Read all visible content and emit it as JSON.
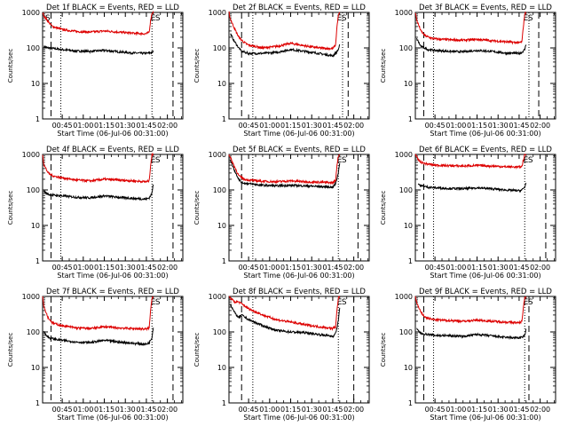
{
  "figure": {
    "colors": {
      "events": "#000000",
      "lld": "#dd0000",
      "axes": "#000000"
    }
  },
  "chart_data": [
    {
      "type": "line",
      "title": "Det 1f BLACK = Events, RED = LLD",
      "xlabel": "Start Time (06-Jul-06 00:31:00)",
      "ylabel": "Counts/sec",
      "yscale": "log",
      "ylim": [
        1,
        1000
      ],
      "xlim": [
        "00:31",
        "02:11"
      ],
      "x_ticks": [
        "00:45",
        "01:00",
        "01:15",
        "01:30",
        "01:45",
        "02:00"
      ],
      "y_ticks": [
        "1",
        "10",
        "100",
        "1000"
      ],
      "markers": {
        "dashed": [
          "00:37",
          "02:04"
        ],
        "dotted": [
          "00:44",
          "01:49"
        ]
      },
      "flags": [
        "S",
        "E",
        "S"
      ],
      "grid": false,
      "series": [
        {
          "name": "Events",
          "x": [
            "00:32",
            "00:35",
            "00:40",
            "00:45",
            "00:55",
            "01:05",
            "01:15",
            "01:25",
            "01:35",
            "01:45",
            "01:47",
            "01:49",
            "01:50"
          ],
          "y": [
            110,
            100,
            95,
            90,
            82,
            80,
            85,
            78,
            72,
            70,
            72,
            74,
            80
          ]
        },
        {
          "name": "LLD",
          "x": [
            "00:31",
            "00:32",
            "00:35",
            "00:38",
            "00:42",
            "00:45",
            "00:55",
            "01:05",
            "01:15",
            "01:25",
            "01:35",
            "01:45",
            "01:47",
            "01:48",
            "01:49",
            "01:50"
          ],
          "y": [
            1000,
            800,
            550,
            400,
            360,
            330,
            290,
            280,
            300,
            280,
            260,
            250,
            280,
            600,
            950,
            1000
          ]
        }
      ]
    },
    {
      "type": "line",
      "title": "Det 2f BLACK = Events, RED = LLD",
      "xlabel": "Start Time (06-Jul-06 00:31:00)",
      "ylabel": "Counts/sec",
      "yscale": "log",
      "ylim": [
        1,
        1000
      ],
      "xlim": [
        "00:31",
        "02:11"
      ],
      "x_ticks": [
        "00:45",
        "01:00",
        "01:15",
        "01:30",
        "01:45",
        "02:00"
      ],
      "y_ticks": [
        "1",
        "10",
        "100",
        "1000"
      ],
      "markers": {
        "dashed": [
          "00:40",
          "01:56"
        ],
        "dotted": [
          "00:48",
          "01:52"
        ]
      },
      "flags": [
        "E",
        "S"
      ],
      "grid": false,
      "series": [
        {
          "name": "Events",
          "x": [
            "00:32",
            "00:35",
            "00:38",
            "00:40",
            "00:45",
            "00:55",
            "01:05",
            "01:15",
            "01:25",
            "01:35",
            "01:45",
            "01:47",
            "01:49",
            "01:50"
          ],
          "y": [
            250,
            150,
            100,
            80,
            70,
            70,
            75,
            90,
            80,
            70,
            60,
            70,
            90,
            120
          ]
        },
        {
          "name": "LLD",
          "x": [
            "00:31",
            "00:32",
            "00:35",
            "00:38",
            "00:42",
            "00:45",
            "00:55",
            "01:05",
            "01:15",
            "01:25",
            "01:35",
            "01:45",
            "01:47",
            "01:48",
            "01:49",
            "01:50"
          ],
          "y": [
            1000,
            650,
            350,
            200,
            140,
            120,
            100,
            110,
            135,
            115,
            100,
            95,
            120,
            400,
            800,
            1000
          ]
        }
      ]
    },
    {
      "type": "line",
      "title": "Det 3f BLACK = Events, RED = LLD",
      "xlabel": "Start Time (06-Jul-06 00:31:00)",
      "ylabel": "Counts/sec",
      "yscale": "log",
      "ylim": [
        1,
        1000
      ],
      "xlim": [
        "00:31",
        "02:11"
      ],
      "x_ticks": [
        "00:45",
        "01:00",
        "01:15",
        "01:30",
        "01:45",
        "02:00"
      ],
      "y_ticks": [
        "1",
        "10",
        "100",
        "1000"
      ],
      "markers": {
        "dashed": [
          "00:37",
          "01:59"
        ],
        "dotted": [
          "00:44",
          "01:52"
        ]
      },
      "flags": [
        "E",
        "S"
      ],
      "grid": false,
      "series": [
        {
          "name": "Events",
          "x": [
            "00:32",
            "00:35",
            "00:40",
            "00:45",
            "00:55",
            "01:05",
            "01:15",
            "01:25",
            "01:35",
            "01:45",
            "01:47",
            "01:49",
            "01:50"
          ],
          "y": [
            180,
            110,
            90,
            85,
            80,
            78,
            85,
            80,
            72,
            70,
            75,
            90,
            130
          ]
        },
        {
          "name": "LLD",
          "x": [
            "00:31",
            "00:32",
            "00:35",
            "00:38",
            "00:42",
            "00:45",
            "00:55",
            "01:05",
            "01:15",
            "01:25",
            "01:35",
            "01:45",
            "01:47",
            "01:48",
            "01:49",
            "01:50"
          ],
          "y": [
            1000,
            600,
            300,
            220,
            190,
            180,
            170,
            165,
            175,
            160,
            150,
            140,
            150,
            400,
            900,
            1000
          ]
        }
      ]
    },
    {
      "type": "line",
      "title": "Det 4f BLACK = Events, RED = LLD",
      "xlabel": "Start Time (06-Jul-06 00:31:00)",
      "ylabel": "Counts/sec",
      "yscale": "log",
      "ylim": [
        1,
        1000
      ],
      "xlim": [
        "00:31",
        "02:11"
      ],
      "x_ticks": [
        "00:45",
        "01:00",
        "01:15",
        "01:30",
        "01:45",
        "02:00"
      ],
      "y_ticks": [
        "1",
        "10",
        "100",
        "1000"
      ],
      "markers": {
        "dashed": [
          "00:37",
          "02:04"
        ],
        "dotted": [
          "00:44",
          "01:49"
        ]
      },
      "flags": [
        "E",
        "S"
      ],
      "grid": false,
      "series": [
        {
          "name": "Events",
          "x": [
            "00:32",
            "00:35",
            "00:40",
            "00:45",
            "00:55",
            "01:05",
            "01:15",
            "01:25",
            "01:35",
            "01:45",
            "01:47",
            "01:49",
            "01:50"
          ],
          "y": [
            90,
            75,
            70,
            68,
            62,
            60,
            68,
            62,
            58,
            55,
            60,
            80,
            150
          ]
        },
        {
          "name": "LLD",
          "x": [
            "00:31",
            "00:32",
            "00:35",
            "00:38",
            "00:42",
            "00:45",
            "00:55",
            "01:05",
            "01:15",
            "01:25",
            "01:35",
            "01:45",
            "01:47",
            "01:48",
            "01:49",
            "01:50"
          ],
          "y": [
            1000,
            500,
            300,
            250,
            230,
            220,
            190,
            180,
            200,
            190,
            180,
            170,
            180,
            500,
            950,
            1000
          ]
        }
      ]
    },
    {
      "type": "line",
      "title": "Det 5f BLACK = Events, RED = LLD",
      "xlabel": "Start Time (06-Jul-06 00:31:00)",
      "ylabel": "Counts/sec",
      "yscale": "log",
      "ylim": [
        1,
        1000
      ],
      "xlim": [
        "00:31",
        "02:11"
      ],
      "x_ticks": [
        "00:45",
        "01:00",
        "01:15",
        "01:30",
        "01:45",
        "02:00"
      ],
      "y_ticks": [
        "1",
        "10",
        "100",
        "1000"
      ],
      "markers": {
        "dashed": [
          "00:40",
          "02:03"
        ],
        "dotted": [
          "00:48",
          "01:49"
        ]
      },
      "flags": [
        "E",
        "S"
      ],
      "grid": false,
      "series": [
        {
          "name": "Events",
          "x": [
            "00:32",
            "00:35",
            "00:38",
            "00:40",
            "00:45",
            "00:55",
            "01:05",
            "01:15",
            "01:25",
            "01:35",
            "01:45",
            "01:47",
            "01:49",
            "01:50"
          ],
          "y": [
            700,
            350,
            200,
            160,
            150,
            135,
            130,
            135,
            130,
            125,
            120,
            150,
            300,
            600
          ]
        },
        {
          "name": "LLD",
          "x": [
            "00:31",
            "00:32",
            "00:35",
            "00:38",
            "00:42",
            "00:45",
            "00:55",
            "01:05",
            "01:15",
            "01:25",
            "01:35",
            "01:45",
            "01:47",
            "01:48",
            "01:49",
            "01:50"
          ],
          "y": [
            1000,
            800,
            450,
            250,
            200,
            190,
            175,
            170,
            180,
            170,
            165,
            160,
            180,
            500,
            900,
            1000
          ]
        }
      ]
    },
    {
      "type": "line",
      "title": "Det 6f BLACK = Events, RED = LLD",
      "xlabel": "Start Time (06-Jul-06 00:31:00)",
      "ylabel": "Counts/sec",
      "yscale": "log",
      "ylim": [
        1,
        1000
      ],
      "xlim": [
        "00:31",
        "02:11"
      ],
      "x_ticks": [
        "00:45",
        "01:00",
        "01:15",
        "01:30",
        "01:45",
        "02:00"
      ],
      "y_ticks": [
        "1",
        "10",
        "100",
        "1000"
      ],
      "markers": {
        "dashed": [
          "00:37",
          "02:04"
        ],
        "dotted": [
          "00:44",
          "01:49"
        ]
      },
      "flags": [
        "E",
        "S"
      ],
      "grid": false,
      "series": [
        {
          "name": "Events",
          "x": [
            "00:33",
            "00:35",
            "00:40",
            "00:45",
            "00:55",
            "01:05",
            "01:15",
            "01:25",
            "01:35",
            "01:45",
            "01:47",
            "01:49",
            "01:50"
          ],
          "y": [
            150,
            130,
            120,
            115,
            110,
            108,
            115,
            108,
            100,
            95,
            100,
            120,
            160
          ]
        },
        {
          "name": "LLD",
          "x": [
            "00:31",
            "00:33",
            "00:35",
            "00:38",
            "00:42",
            "00:45",
            "00:55",
            "01:05",
            "01:15",
            "01:25",
            "01:35",
            "01:45",
            "01:47",
            "01:48",
            "01:49",
            "01:50"
          ],
          "y": [
            1000,
            700,
            600,
            550,
            520,
            500,
            480,
            470,
            490,
            470,
            450,
            440,
            460,
            700,
            950,
            1000
          ]
        }
      ]
    },
    {
      "type": "line",
      "title": "Det 7f BLACK = Events, RED = LLD",
      "xlabel": "Start Time (06-Jul-06 00:31:00)",
      "ylabel": "Counts/sec",
      "yscale": "log",
      "ylim": [
        1,
        1000
      ],
      "xlim": [
        "00:31",
        "02:11"
      ],
      "x_ticks": [
        "00:45",
        "01:00",
        "01:15",
        "01:30",
        "01:45",
        "02:00"
      ],
      "y_ticks": [
        "1",
        "10",
        "100",
        "1000"
      ],
      "markers": {
        "dashed": [
          "00:37",
          "02:04"
        ],
        "dotted": [
          "00:44",
          "01:49"
        ]
      },
      "flags": [
        "E",
        "S"
      ],
      "grid": false,
      "series": [
        {
          "name": "Events",
          "x": [
            "00:32",
            "00:35",
            "00:40",
            "00:45",
            "00:55",
            "01:05",
            "01:15",
            "01:25",
            "01:35",
            "01:45",
            "01:47",
            "01:49",
            "01:50"
          ],
          "y": [
            100,
            70,
            62,
            58,
            52,
            50,
            58,
            52,
            48,
            45,
            50,
            70,
            140
          ]
        },
        {
          "name": "LLD",
          "x": [
            "00:31",
            "00:32",
            "00:35",
            "00:38",
            "00:42",
            "00:45",
            "00:55",
            "01:05",
            "01:15",
            "01:25",
            "01:35",
            "01:45",
            "01:47",
            "01:48",
            "01:49",
            "01:50"
          ],
          "y": [
            1000,
            500,
            250,
            180,
            160,
            150,
            130,
            125,
            140,
            130,
            125,
            120,
            130,
            400,
            900,
            1000
          ]
        }
      ]
    },
    {
      "type": "line",
      "title": "Det 8f BLACK = Events, RED = LLD",
      "xlabel": "Start Time (06-Jul-06 00:31:00)",
      "ylabel": "Counts/sec",
      "yscale": "log",
      "ylim": [
        1,
        1000
      ],
      "xlim": [
        "00:31",
        "02:11"
      ],
      "x_ticks": [
        "00:45",
        "01:00",
        "01:15",
        "01:30",
        "01:45",
        "02:00"
      ],
      "y_ticks": [
        "1",
        "10",
        "100",
        "1000"
      ],
      "markers": {
        "dashed": [
          "00:40",
          "02:00"
        ],
        "dotted": [
          "00:48",
          "01:49"
        ]
      },
      "flags": [
        "E",
        "S"
      ],
      "grid": false,
      "series": [
        {
          "name": "Events",
          "x": [
            "00:32",
            "00:35",
            "00:38",
            "00:40",
            "00:45",
            "00:55",
            "01:05",
            "01:15",
            "01:25",
            "01:35",
            "01:45",
            "01:47",
            "01:49",
            "01:50"
          ],
          "y": [
            600,
            350,
            250,
            300,
            220,
            150,
            110,
            100,
            95,
            85,
            75,
            90,
            200,
            500
          ]
        },
        {
          "name": "LLD",
          "x": [
            "00:31",
            "00:32",
            "00:35",
            "00:38",
            "00:42",
            "00:45",
            "00:55",
            "01:05",
            "01:15",
            "01:25",
            "01:35",
            "01:45",
            "01:47",
            "01:48",
            "01:49",
            "01:50"
          ],
          "y": [
            1000,
            900,
            700,
            700,
            550,
            450,
            300,
            220,
            190,
            160,
            140,
            125,
            140,
            400,
            900,
            1000
          ]
        }
      ]
    },
    {
      "type": "line",
      "title": "Det 9f BLACK = Events, RED = LLD",
      "xlabel": "Start Time (06-Jul-06 00:31:00)",
      "ylabel": "Counts/sec",
      "yscale": "log",
      "ylim": [
        1,
        1000
      ],
      "xlim": [
        "00:31",
        "02:11"
      ],
      "x_ticks": [
        "00:45",
        "01:00",
        "01:15",
        "01:30",
        "01:45",
        "02:00"
      ],
      "y_ticks": [
        "1",
        "10",
        "100",
        "1000"
      ],
      "markers": {
        "dashed": [
          "00:37",
          "01:52"
        ],
        "dotted": [
          "00:44",
          "01:49"
        ]
      },
      "flags": [
        "E",
        "S"
      ],
      "grid": false,
      "series": [
        {
          "name": "Events",
          "x": [
            "00:32",
            "00:35",
            "00:40",
            "00:45",
            "00:55",
            "01:05",
            "01:15",
            "01:25",
            "01:35",
            "01:45",
            "01:47",
            "01:49",
            "01:50"
          ],
          "y": [
            120,
            90,
            85,
            80,
            78,
            75,
            85,
            78,
            70,
            68,
            70,
            80,
            120
          ]
        },
        {
          "name": "LLD",
          "x": [
            "00:31",
            "00:32",
            "00:35",
            "00:38",
            "00:42",
            "00:45",
            "00:55",
            "01:05",
            "01:15",
            "01:25",
            "01:35",
            "01:45",
            "01:47",
            "01:48",
            "01:49",
            "01:50"
          ],
          "y": [
            1000,
            650,
            350,
            260,
            230,
            220,
            210,
            200,
            215,
            200,
            190,
            180,
            200,
            500,
            900,
            1000
          ]
        }
      ]
    }
  ]
}
